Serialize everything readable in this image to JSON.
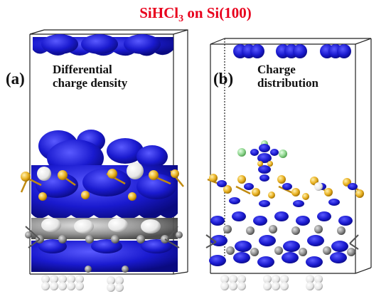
{
  "figure": {
    "title_main": "SiHCl",
    "title_sub": "3",
    "title_tail": " on Si(100)",
    "panels": [
      {
        "letter": "(a)",
        "caption_line1": "Differential",
        "caption_line2": "charge density"
      },
      {
        "letter": "(b)",
        "caption_line1": "Charge",
        "caption_line2": "distribution"
      }
    ]
  },
  "colors": {
    "title": "#e8001c",
    "density_blue": "#1a1acf",
    "si_gold": "#e8b020",
    "cl_green": "#8fd68f",
    "grey": "#8c8c8c",
    "white_atom": "#f2f2f2"
  }
}
